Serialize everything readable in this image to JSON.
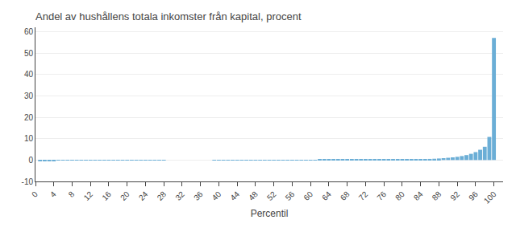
{
  "chart_data": {
    "type": "bar",
    "title": "Andel av hushållens totala inkomster från kapital, procent",
    "xlabel": "Percentil",
    "color": "#6baed6",
    "grid": true,
    "x": [
      1,
      2,
      3,
      4,
      5,
      6,
      7,
      8,
      9,
      10,
      11,
      12,
      13,
      14,
      15,
      16,
      17,
      18,
      19,
      20,
      21,
      22,
      23,
      24,
      25,
      26,
      27,
      28,
      29,
      30,
      31,
      32,
      33,
      34,
      35,
      36,
      37,
      38,
      39,
      40,
      41,
      42,
      43,
      44,
      45,
      46,
      47,
      48,
      49,
      50,
      51,
      52,
      53,
      54,
      55,
      56,
      57,
      58,
      59,
      60,
      61,
      62,
      63,
      64,
      65,
      66,
      67,
      68,
      69,
      70,
      71,
      72,
      73,
      74,
      75,
      76,
      77,
      78,
      79,
      80,
      81,
      82,
      83,
      84,
      85,
      86,
      87,
      88,
      89,
      90,
      91,
      92,
      93,
      94,
      95,
      96,
      97,
      98,
      99,
      100
    ],
    "values": [
      -0.3,
      -0.3,
      -0.28,
      -0.26,
      -0.25,
      -0.24,
      -0.22,
      -0.21,
      -0.2,
      -0.19,
      -0.18,
      -0.17,
      -0.16,
      -0.15,
      -0.14,
      -0.13,
      -0.12,
      -0.11,
      -0.1,
      -0.09,
      -0.08,
      -0.07,
      -0.06,
      -0.05,
      -0.04,
      -0.03,
      -0.02,
      -0.01,
      0.0,
      0.0,
      0.0,
      0.0,
      0.0,
      0.0,
      0.0,
      0.0,
      0.0,
      0.0,
      0.05,
      0.05,
      0.05,
      0.05,
      0.06,
      0.06,
      0.06,
      0.07,
      0.07,
      0.07,
      0.08,
      0.08,
      0.08,
      0.09,
      0.09,
      0.09,
      0.1,
      0.1,
      0.1,
      0.11,
      0.11,
      0.12,
      0.12,
      0.13,
      0.13,
      0.14,
      0.14,
      0.15,
      0.15,
      0.16,
      0.17,
      0.17,
      0.18,
      0.19,
      0.2,
      0.21,
      0.22,
      0.23,
      0.24,
      0.26,
      0.28,
      0.3,
      0.32,
      0.35,
      0.38,
      0.42,
      0.46,
      0.52,
      0.6,
      0.72,
      0.88,
      1.05,
      1.25,
      1.5,
      1.85,
      2.3,
      2.9,
      3.7,
      4.8,
      6.2,
      10.8,
      57.0
    ],
    "xlim": [
      0,
      102
    ],
    "xticks": [
      0,
      4,
      8,
      12,
      16,
      20,
      24,
      28,
      32,
      36,
      40,
      44,
      48,
      52,
      56,
      60,
      64,
      68,
      72,
      76,
      80,
      84,
      88,
      92,
      96,
      100
    ],
    "ylim": [
      -10,
      62
    ],
    "yticks": [
      -10,
      0,
      10,
      20,
      30,
      40,
      50,
      60
    ]
  }
}
